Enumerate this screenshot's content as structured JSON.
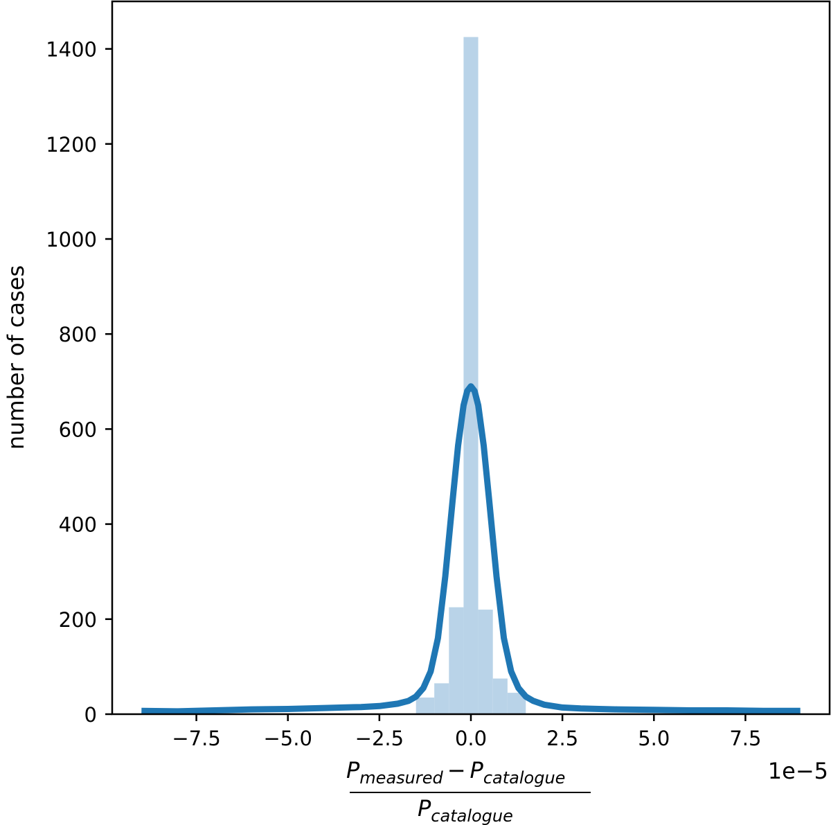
{
  "chart_data": {
    "type": "bar",
    "ylabel": "number of cases",
    "xlabel": {
      "numerator": {
        "left_symbol": "P",
        "left_subscript": "measured",
        "operator": "−",
        "right_symbol": "P",
        "right_subscript": "catalogue"
      },
      "denominator": {
        "symbol": "P",
        "subscript": "catalogue"
      }
    },
    "offset_text": "1e−5",
    "xlim": [
      -9.8,
      9.8
    ],
    "ylim": [
      0,
      1500
    ],
    "x_ticks": [
      -7.5,
      -5.0,
      -2.5,
      0.0,
      2.5,
      5.0,
      7.5
    ],
    "x_tick_labels": [
      "−7.5",
      "−5.0",
      "−2.5",
      "0.0",
      "2.5",
      "5.0",
      "7.5"
    ],
    "y_ticks": [
      0,
      200,
      400,
      600,
      800,
      1000,
      1200,
      1400
    ],
    "y_tick_labels": [
      "0",
      "200",
      "400",
      "600",
      "800",
      "1000",
      "1200",
      "1400"
    ],
    "histogram": {
      "color": "#b9d3e8",
      "bins": [
        {
          "x0": -1.5,
          "x1": -1.0,
          "count": 35
        },
        {
          "x0": -1.0,
          "x1": -0.6,
          "count": 65
        },
        {
          "x0": -0.6,
          "x1": -0.2,
          "count": 225
        },
        {
          "x0": -0.2,
          "x1": 0.2,
          "count": 1425
        },
        {
          "x0": 0.2,
          "x1": 0.6,
          "count": 220
        },
        {
          "x0": 0.6,
          "x1": 1.0,
          "count": 75
        },
        {
          "x0": 1.0,
          "x1": 1.5,
          "count": 45
        }
      ]
    },
    "series": [
      {
        "type": "line",
        "color": "#1f77b4",
        "x": [
          -9.0,
          -8.0,
          -7.0,
          -6.0,
          -5.0,
          -4.0,
          -3.5,
          -3.0,
          -2.5,
          -2.0,
          -1.7,
          -1.5,
          -1.3,
          -1.1,
          -0.9,
          -0.7,
          -0.5,
          -0.35,
          -0.2,
          -0.1,
          0.0,
          0.1,
          0.2,
          0.35,
          0.5,
          0.7,
          0.9,
          1.1,
          1.3,
          1.5,
          1.7,
          2.0,
          2.5,
          3.0,
          3.5,
          4.0,
          5.0,
          6.0,
          7.0,
          8.0,
          9.0
        ],
        "y": [
          7,
          6,
          8,
          10,
          11,
          13,
          14,
          15,
          17,
          22,
          28,
          37,
          55,
          90,
          160,
          290,
          450,
          565,
          650,
          680,
          690,
          680,
          650,
          565,
          450,
          290,
          160,
          90,
          55,
          37,
          28,
          20,
          14,
          12,
          11,
          10,
          9,
          8,
          8,
          7,
          7
        ]
      }
    ]
  }
}
